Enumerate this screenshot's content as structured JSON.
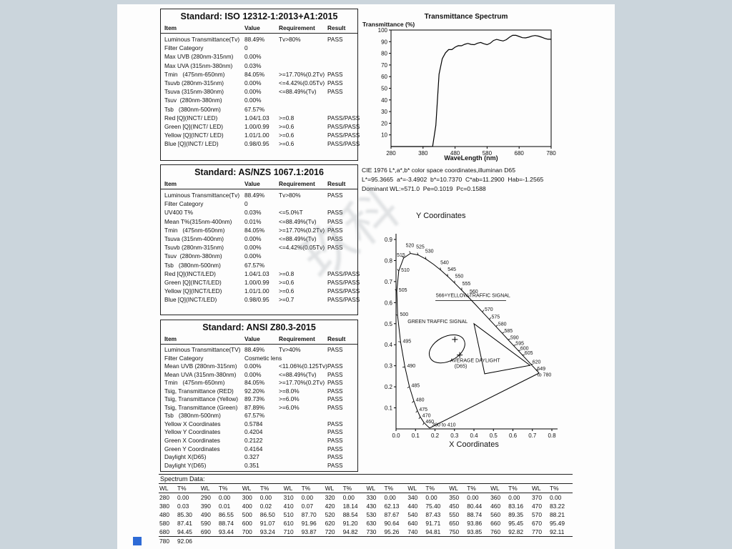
{
  "watermark": "玖科",
  "standards": [
    {
      "title": "Standard: ISO 12312-1:2013+A1:2015",
      "columns": [
        "Item",
        "Value",
        "Requirement",
        "Result"
      ],
      "rows": [
        [
          "Luminous Transmittance(Tv)",
          "88.49%",
          "Tv>80%",
          "PASS"
        ],
        [
          "Filter Category",
          "0",
          "",
          ""
        ],
        [
          "Max UVB (280nm-315nm)",
          "0.00%",
          "",
          ""
        ],
        [
          "Max UVA (315nm-380nm)",
          "0.03%",
          "",
          ""
        ],
        [
          "Tmin   (475nm-650nm)",
          "84.05%",
          ">=17.70%(0.2Tv)",
          "PASS"
        ],
        [
          "Tsuvb (280nm-315nm)",
          "0.00%",
          "<=4.42%(0.05Tv)",
          "PASS"
        ],
        [
          "Tsuva (315nm-380nm)",
          "0.00%",
          "<=88.49%(Tv)",
          "PASS"
        ],
        [
          "Tsuv  (280nm-380nm)",
          "0.00%",
          "",
          ""
        ],
        [
          "Tsb   (380nm-500nm)",
          "67.57%",
          "",
          ""
        ],
        [
          "Red [Q](INCT/ LED)",
          "1.04/1.03",
          ">=0.8",
          "PASS/PASS"
        ],
        [
          "Green  [Q](INCT/ LED)",
          "1.00/0.99",
          ">=0.6",
          "PASS/PASS"
        ],
        [
          "Yellow [Q](INCT/ LED)",
          "1.01/1.00",
          ">=0.6",
          "PASS/PASS"
        ],
        [
          "Blue  [Q](INCT/ LED)",
          "0.98/0.95",
          ">=0.6",
          "PASS/PASS"
        ]
      ]
    },
    {
      "title": "Standard: AS/NZS 1067.1:2016",
      "columns": [
        "Item",
        "Value",
        "Requirement",
        "Result"
      ],
      "rows": [
        [
          "Luminous Transmittance(Tv)",
          "88.49%",
          "Tv>80%",
          "PASS"
        ],
        [
          "Filter Category",
          "0",
          "",
          ""
        ],
        [
          "UV400 T%",
          "0.03%",
          "<=5.0%T",
          "PASS"
        ],
        [
          "Mean T%(315nm-400nm)",
          "0.01%",
          "<=88.49%(Tv)",
          "PASS"
        ],
        [
          "Tmin   (475nm-650nm)",
          "84.05%",
          ">=17.70%(0.2Tv)",
          "PASS"
        ],
        [
          "Tsuva (315nm-400nm)",
          "0.00%",
          "<=88.49%(Tv)",
          "PASS"
        ],
        [
          "Tsuvb (280nm-315nm)",
          "0.00%",
          "<=4.42%(0.05Tv)",
          "PASS"
        ],
        [
          "Tsuv  (280nm-380nm)",
          "0.00%",
          "",
          ""
        ],
        [
          "Tsb   (380nm-500nm)",
          "67.57%",
          "",
          ""
        ],
        [
          "Red  [Q](INCT/LED)",
          "1.04/1.03",
          ">=0.8",
          "PASS/PASS"
        ],
        [
          "Green [Q](INCT/LED)",
          "1.00/0.99",
          ">=0.6",
          "PASS/PASS"
        ],
        [
          "Yellow [Q](INCT/LED)",
          "1.01/1.00",
          ">=0.6",
          "PASS/PASS"
        ],
        [
          "Blue [Q](INCT/LED)",
          "0.98/0.95",
          ">=0.7",
          "PASS/PASS"
        ]
      ]
    },
    {
      "title": "Standard: ANSI Z80.3-2015",
      "columns": [
        "Item",
        "Value",
        "Requirement",
        "Result"
      ],
      "rows": [
        [
          "Luminous Transmittance(TV)",
          "88.49%",
          "Tv>40%",
          "PASS"
        ],
        [
          "Filter Category",
          "Cosmetic lens",
          "",
          ""
        ],
        [
          "Mean UVB (280nm-315nm)",
          "0.00%",
          "<11.06%(0.125Tv)",
          "PASS"
        ],
        [
          "Mean UVA (315nm-380nm)",
          "0.00%",
          "<=88.49%(Tv)",
          "PASS"
        ],
        [
          "Tmin   (475nm-650nm)",
          "84.05%",
          ">=17.70%(0.2Tv)",
          "PASS"
        ],
        [
          "Tsig, Transmittance (RED)",
          "92.20%",
          ">=8.0%",
          "PASS"
        ],
        [
          "Tsig, Transmittance (Yellow)",
          "89.73%",
          ">=6.0%",
          "PASS"
        ],
        [
          "Tsig, Transmittance (Green)",
          "87.89%",
          ">=6.0%",
          "PASS"
        ],
        [
          "Tsb   (380nm-500nm)",
          "67.57%",
          "",
          ""
        ],
        [
          "Yellow X Coordinates",
          "0.5784",
          "",
          "PASS"
        ],
        [
          "Yellow Y Coordinates",
          "0.4204",
          "",
          "PASS"
        ],
        [
          "Green X Coordinates",
          "0.2122",
          "",
          "PASS"
        ],
        [
          "Green Y Coordinates",
          "0.4164",
          "",
          "PASS"
        ],
        [
          "Daylight X(D65)",
          "0.327",
          "",
          "PASS"
        ],
        [
          "Daylight Y(D65)",
          "0.351",
          "",
          "PASS"
        ]
      ]
    }
  ],
  "cie_info": {
    "line1": "CIE 1976 L*,a*,b* color space coordinates,illuminan D65",
    "line2": "L*=95.3665  a*=-3.4902  b*=10.7370  C*ab=11.2900  Hab=-1.2565",
    "line3": "Dominant WL:=571.0  Pe=0.1019  Pc=0.1588"
  },
  "chart_data": [
    {
      "type": "line",
      "title": "Transmittance Spectrum",
      "ylabel": "Transmittance (%)",
      "xlabel": "WaveLength (nm)",
      "xlim": [
        280,
        780
      ],
      "ylim": [
        0,
        100
      ],
      "x_ticks": [
        280,
        380,
        480,
        580,
        680,
        780
      ],
      "y_ticks": [
        10,
        20,
        30,
        40,
        50,
        60,
        70,
        80,
        90,
        100
      ],
      "x": [
        280,
        290,
        300,
        310,
        320,
        330,
        340,
        350,
        360,
        370,
        380,
        390,
        400,
        410,
        420,
        430,
        440,
        450,
        460,
        470,
        480,
        490,
        500,
        510,
        520,
        530,
        540,
        550,
        560,
        570,
        580,
        590,
        600,
        610,
        620,
        630,
        640,
        650,
        660,
        670,
        680,
        690,
        700,
        710,
        720,
        730,
        740,
        750,
        760,
        770,
        780
      ],
      "y": [
        0,
        0,
        0,
        0,
        0,
        0,
        0,
        0,
        0,
        0,
        0.03,
        0.01,
        0.02,
        0.07,
        18.14,
        62.13,
        75.4,
        80.44,
        83.16,
        83.22,
        85.3,
        86.55,
        86.5,
        87.7,
        88.54,
        87.67,
        87.43,
        88.74,
        89.35,
        88.21,
        87.41,
        88.74,
        91.07,
        91.96,
        91.2,
        90.64,
        91.71,
        93.86,
        95.45,
        95.49,
        94.45,
        93.44,
        93.24,
        93.87,
        94.82,
        95.26,
        94.81,
        93.85,
        92.82,
        92.11,
        92.06
      ]
    },
    {
      "type": "scatter",
      "ylabel": "Y Coordinates",
      "xlabel": "X Coordinates",
      "xlim": [
        0,
        0.8
      ],
      "ylim": [
        0,
        0.9
      ],
      "locus": [
        [
          380,
          0.1741,
          0.005
        ],
        [
          400,
          0.1733,
          0.0048
        ],
        [
          420,
          0.1714,
          0.0051
        ],
        [
          440,
          0.1644,
          0.0109
        ],
        [
          450,
          0.1566,
          0.0177
        ],
        [
          460,
          0.144,
          0.0297
        ],
        [
          470,
          0.1241,
          0.0578
        ],
        [
          475,
          0.1096,
          0.0868
        ],
        [
          480,
          0.0913,
          0.1327
        ],
        [
          485,
          0.0687,
          0.2007
        ],
        [
          490,
          0.0454,
          0.295
        ],
        [
          495,
          0.0235,
          0.4127
        ],
        [
          500,
          0.0082,
          0.5384
        ],
        [
          505,
          0.0039,
          0.6548
        ],
        [
          510,
          0.0139,
          0.7502
        ],
        [
          515,
          0.0389,
          0.812
        ],
        [
          520,
          0.0743,
          0.8338
        ],
        [
          525,
          0.1142,
          0.8262
        ],
        [
          530,
          0.1547,
          0.8059
        ],
        [
          535,
          0.1929,
          0.7816
        ],
        [
          540,
          0.2296,
          0.7543
        ],
        [
          545,
          0.2658,
          0.7243
        ],
        [
          550,
          0.3016,
          0.6923
        ],
        [
          555,
          0.3373,
          0.6589
        ],
        [
          560,
          0.3731,
          0.6245
        ],
        [
          565,
          0.4087,
          0.5896
        ],
        [
          570,
          0.4441,
          0.5547
        ],
        [
          575,
          0.4788,
          0.5202
        ],
        [
          580,
          0.5125,
          0.4866
        ],
        [
          585,
          0.5448,
          0.4544
        ],
        [
          590,
          0.5752,
          0.4242
        ],
        [
          595,
          0.6029,
          0.3965
        ],
        [
          600,
          0.627,
          0.3725
        ],
        [
          605,
          0.6482,
          0.3514
        ],
        [
          610,
          0.6658,
          0.334
        ],
        [
          620,
          0.6915,
          0.3083
        ],
        [
          640,
          0.719,
          0.2809
        ],
        [
          660,
          0.73,
          0.27
        ],
        [
          700,
          0.7347,
          0.2653
        ],
        [
          780,
          0.7347,
          0.2653
        ]
      ],
      "tick_wls": [
        460,
        470,
        475,
        480,
        485,
        490,
        495,
        500,
        505,
        510,
        515,
        520,
        525,
        530,
        540,
        545,
        550,
        555,
        560,
        570,
        575,
        580,
        585,
        590,
        595,
        600,
        605,
        620,
        640
      ],
      "labels": [
        [
          "520",
          0.05,
          0.865
        ],
        [
          "525",
          0.103,
          0.858
        ],
        [
          "530",
          0.15,
          0.838
        ],
        [
          "540",
          0.228,
          0.782
        ],
        [
          "545",
          0.265,
          0.75
        ],
        [
          "550",
          0.303,
          0.718
        ],
        [
          "555",
          0.34,
          0.682
        ],
        [
          "560",
          0.378,
          0.645
        ],
        [
          "566=YELLOW TRAFFIC SIGNAL",
          0.205,
          0.627
        ],
        [
          "570",
          0.455,
          0.56
        ],
        [
          "575",
          0.49,
          0.525
        ],
        [
          "580",
          0.524,
          0.49
        ],
        [
          "585",
          0.556,
          0.458
        ],
        [
          "590",
          0.587,
          0.427
        ],
        [
          "595",
          0.614,
          0.399
        ],
        [
          "600",
          0.638,
          0.375
        ],
        [
          "605",
          0.66,
          0.353
        ],
        [
          "620",
          0.7,
          0.31
        ],
        [
          "649",
          0.724,
          0.278
        ],
        [
          "to 780",
          0.726,
          0.25
        ],
        [
          "515",
          0.004,
          0.818
        ],
        [
          "510",
          0.026,
          0.748
        ],
        [
          "505",
          0.014,
          0.652
        ],
        [
          "500",
          0.02,
          0.536
        ],
        [
          "495",
          0.035,
          0.41
        ],
        [
          "490",
          0.057,
          0.292
        ],
        [
          "485",
          0.079,
          0.198
        ],
        [
          "480",
          0.102,
          0.13
        ],
        [
          "475",
          0.119,
          0.085
        ],
        [
          "470",
          0.135,
          0.056
        ],
        [
          "460",
          0.152,
          0.028
        ],
        [
          "380 to 410",
          0.185,
          0.012
        ],
        [
          "GREEN TRAFFIC SIGNAL",
          0.06,
          0.503
        ],
        [
          "AVERAGE DAYLIGHT",
          0.278,
          0.318
        ],
        [
          "(D65)",
          0.3,
          0.29
        ]
      ],
      "triangle": [
        [
          0.4,
          0.5
        ],
        [
          0.688,
          0.302
        ],
        [
          0.455,
          0.262
        ]
      ],
      "ellipse": {
        "cx": 0.262,
        "cy": 0.38,
        "rx": 0.098,
        "ry": 0.058,
        "rot": -28
      },
      "markers": [
        [
          0.302,
          0.425
        ],
        [
          0.327,
          0.351
        ]
      ],
      "line_566": [
        0.202,
        0.61,
        0.565,
        0.61
      ]
    }
  ],
  "spectrum_table": {
    "label": "Spectrum Data:",
    "col_header": [
      "WL",
      "T%"
    ],
    "pairs_per_row": 10
  }
}
